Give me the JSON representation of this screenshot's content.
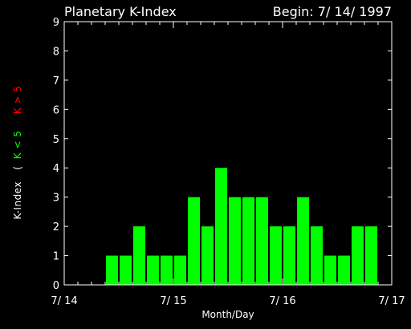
{
  "chart_data": {
    "type": "bar",
    "title": "Planetary K-Index",
    "subtitle": "Begin: 7/ 14/ 1997",
    "xlabel": "Month/Day",
    "ylabel": {
      "prefix": "K-Index",
      "open": "(",
      "low": "K < 5",
      "high": "K > 5"
    },
    "ylim": [
      0,
      9
    ],
    "xlim": [
      0,
      24
    ],
    "y_ticks": [
      "0",
      "1",
      "2",
      "3",
      "4",
      "5",
      "6",
      "7",
      "8",
      "9"
    ],
    "x_tick_labels": [
      "7/ 14",
      "7/ 15",
      "7/ 16",
      "7/ 17"
    ],
    "x_tick_slots": [
      0,
      8,
      16,
      24
    ],
    "values": [
      0,
      0,
      0,
      1,
      1,
      2,
      1,
      1,
      1,
      3,
      2,
      4,
      3,
      3,
      3,
      2,
      2,
      3,
      2,
      1,
      1,
      2,
      2,
      0
    ],
    "grid": false,
    "colors": {
      "background": "#000000",
      "axes": "#ffffff",
      "text": "#ffffff",
      "bar_low": "#00ff00",
      "label_low": "#00ff00",
      "label_high": "#ff0000"
    }
  }
}
